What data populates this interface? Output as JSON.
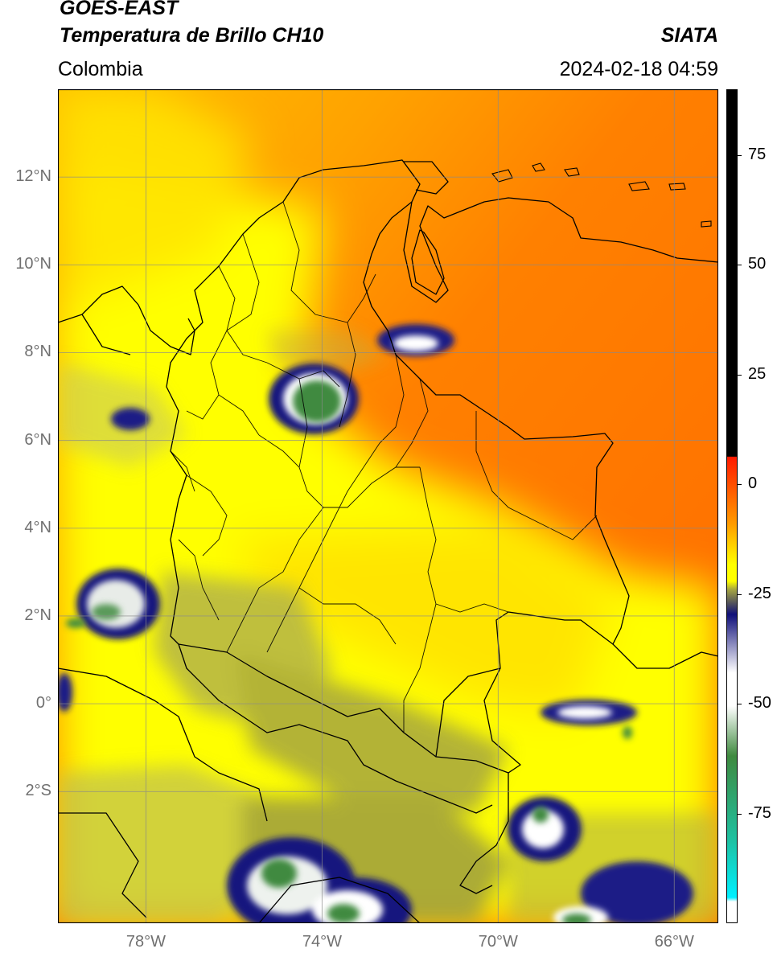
{
  "header": {
    "satellite": "GOES-EAST",
    "product": "Temperatura de Brillo CH10",
    "organization": "SIATA",
    "region": "Colombia",
    "datetime": "2024-02-18 04:59"
  },
  "map": {
    "lon_range": [
      -80,
      -65
    ],
    "lat_range": [
      -5,
      14
    ],
    "lat_ticks": [
      {
        "value": 12,
        "label": "12°N"
      },
      {
        "value": 10,
        "label": "10°N"
      },
      {
        "value": 8,
        "label": "8°N"
      },
      {
        "value": 6,
        "label": "6°N"
      },
      {
        "value": 4,
        "label": "4°N"
      },
      {
        "value": 2,
        "label": "2°N"
      },
      {
        "value": 0,
        "label": "0°"
      },
      {
        "value": -2,
        "label": "2°S"
      }
    ],
    "lon_ticks": [
      {
        "value": -78,
        "label": "78°W"
      },
      {
        "value": -74,
        "label": "74°W"
      },
      {
        "value": -70,
        "label": "70°W"
      },
      {
        "value": -66,
        "label": "66°W"
      }
    ],
    "colors": {
      "warm": "#ff6a00",
      "orange": "#ff9a00",
      "yellow": "#ffff00",
      "olive": "#a6a641",
      "navy": "#10107a",
      "white": "#ffffff",
      "green": "#3f8a3f",
      "teal": "#1fc0a0",
      "grid": "#8a8a8a",
      "border": "#000000"
    }
  },
  "colorbar": {
    "range": [
      -100,
      90
    ],
    "ticks": [
      {
        "value": 75,
        "label": "75"
      },
      {
        "value": 50,
        "label": "50"
      },
      {
        "value": 25,
        "label": "25"
      },
      {
        "value": 0,
        "label": "0"
      },
      {
        "value": -25,
        "label": "-25"
      },
      {
        "value": -50,
        "label": "-50"
      },
      {
        "value": -75,
        "label": "-75"
      }
    ]
  }
}
